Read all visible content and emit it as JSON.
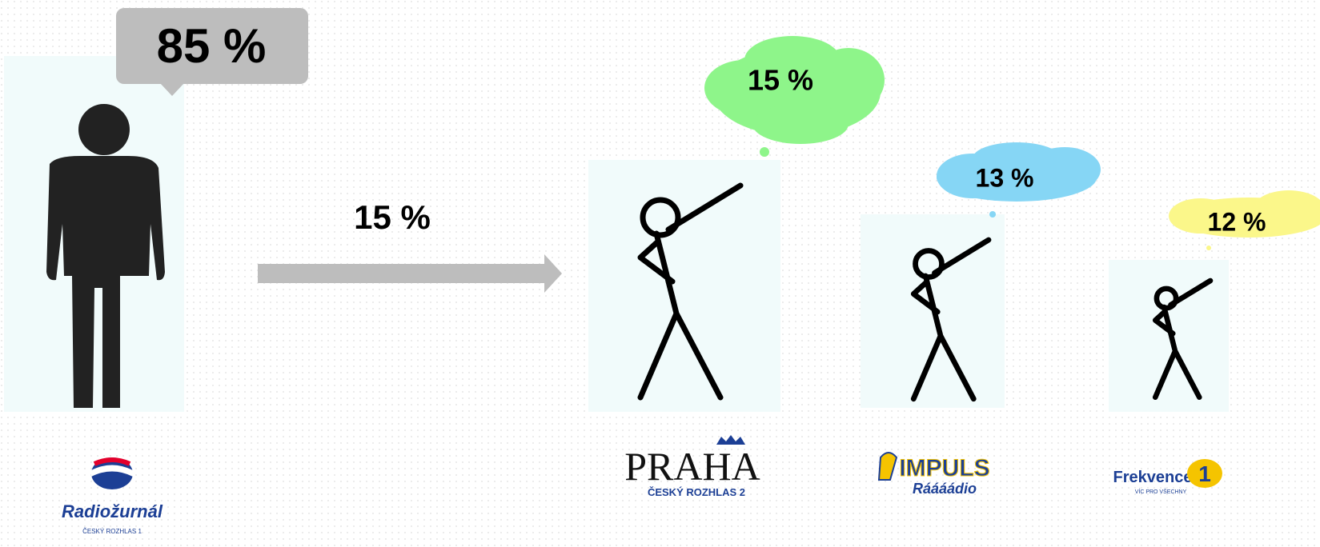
{
  "left": {
    "share": "85 %",
    "station": {
      "name": "Radiožurnál",
      "network": "ČESKÝ ROZHLAS 1"
    }
  },
  "transfer": "15 %",
  "stations": [
    {
      "share": "15 %",
      "name": "PRAHA",
      "network": "ČESKÝ ROZHLAS 2"
    },
    {
      "share": "13 %",
      "name": "IMPULS",
      "tagline": "Ráááádio"
    },
    {
      "share": "12 %",
      "name": "Frekvence",
      "number": "1",
      "tagline": "VÍC PRO VŠECHNY"
    }
  ]
}
